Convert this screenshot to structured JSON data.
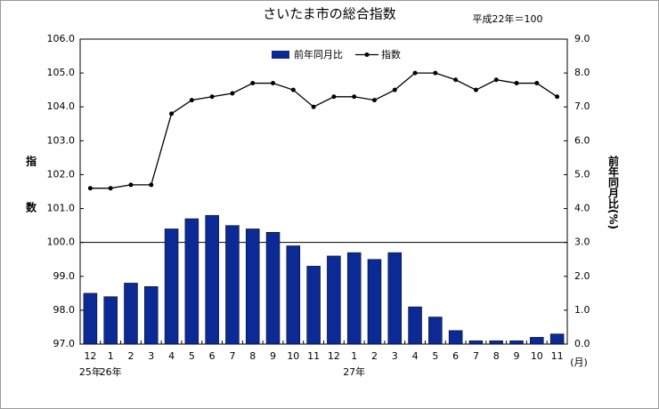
{
  "chart_data": {
    "type": "bar_line",
    "title": "さいたま市の総合指数",
    "subtitle": "平成22年＝100",
    "y_label": "指数",
    "y2_label": "前年同月比(%)",
    "x_unit": "(月)",
    "categories": [
      "12",
      "1",
      "2",
      "3",
      "4",
      "5",
      "6",
      "7",
      "8",
      "9",
      "10",
      "11",
      "12",
      "1",
      "2",
      "3",
      "4",
      "5",
      "6",
      "7",
      "8",
      "9",
      "10",
      "11"
    ],
    "year_labels": [
      "25年",
      "26年",
      null,
      null,
      null,
      null,
      null,
      null,
      null,
      null,
      null,
      null,
      null,
      "27年",
      null,
      null,
      null,
      null,
      null,
      null,
      null,
      null,
      null,
      null
    ],
    "series": [
      {
        "name": "前年同月比",
        "kind": "bar",
        "axis": "y2",
        "color": "#0c2a96",
        "values": [
          1.5,
          1.4,
          1.8,
          1.7,
          3.4,
          3.7,
          3.8,
          3.5,
          3.4,
          3.3,
          2.9,
          2.3,
          2.6,
          2.7,
          2.5,
          2.7,
          1.1,
          0.8,
          0.4,
          0.1,
          0.1,
          0.1,
          0.2,
          0.3
        ]
      },
      {
        "name": "指数",
        "kind": "line",
        "axis": "y",
        "color": "#000000",
        "values": [
          101.6,
          101.6,
          101.7,
          101.7,
          103.8,
          104.2,
          104.3,
          104.4,
          104.7,
          104.7,
          104.5,
          104.0,
          104.3,
          104.3,
          104.2,
          104.5,
          105.0,
          105.0,
          104.8,
          104.5,
          104.8,
          104.7,
          104.7,
          104.3
        ]
      }
    ],
    "ylim": [
      97,
      106
    ],
    "yticks": [
      {
        "value": 97,
        "label": "97.0"
      },
      {
        "value": 98,
        "label": "98.0"
      },
      {
        "value": 99,
        "label": "99.0"
      },
      {
        "value": 100,
        "label": "100.0"
      },
      {
        "value": 101,
        "label": "101.0"
      },
      {
        "value": 102,
        "label": "102.0"
      },
      {
        "value": 103,
        "label": "103.0"
      },
      {
        "value": 104,
        "label": "104.0"
      },
      {
        "value": 105,
        "label": "105.0"
      },
      {
        "value": 106,
        "label": "106.0"
      }
    ],
    "y2lim": [
      0,
      9
    ],
    "y2ticks": [
      {
        "value": 0,
        "label": "0.0"
      },
      {
        "value": 1,
        "label": "1.0"
      },
      {
        "value": 2,
        "label": "2.0"
      },
      {
        "value": 3,
        "label": "3.0"
      },
      {
        "value": 4,
        "label": "4.0"
      },
      {
        "value": 5,
        "label": "5.0"
      },
      {
        "value": 6,
        "label": "6.0"
      },
      {
        "value": 7,
        "label": "7.0"
      },
      {
        "value": 8,
        "label": "8.0"
      },
      {
        "value": 9,
        "label": "9.0"
      }
    ],
    "reference_line": 100,
    "legend": "top"
  }
}
